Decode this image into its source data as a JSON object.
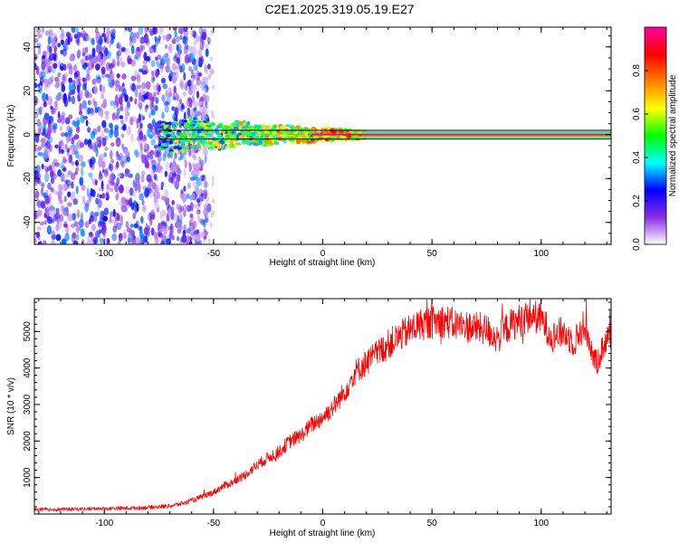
{
  "title": "C2E1.2025.319.05.19.E27",
  "chart_data": [
    {
      "type": "heatmap",
      "name": "spectrogram",
      "xlabel": "Height of straight line (km)",
      "ylabel": "Frequency (Hz)",
      "xlim": [
        -132,
        132
      ],
      "ylim": [
        -50,
        49
      ],
      "xticks": [
        -100,
        -50,
        0,
        50,
        100
      ],
      "xtick_labels": [
        "-100",
        "-50",
        "0",
        "50",
        "100"
      ],
      "yticks": [
        -40,
        -20,
        0,
        20,
        40
      ],
      "ytick_labels": [
        "-40",
        "-20",
        "0",
        "20",
        "40"
      ],
      "reference_lines": [
        2,
        -2
      ],
      "colorbar": {
        "label": "Normalized spectral amplitude",
        "range": [
          0,
          1
        ],
        "ticks": [
          0.0,
          0.2,
          0.4,
          0.6,
          0.8
        ],
        "tick_labels": [
          "0.0",
          "0.2",
          "0.4",
          "0.6",
          "0.8"
        ],
        "colormap": [
          "#ffffff",
          "#8a2be2",
          "#0000ff",
          "#00ffff",
          "#00ff00",
          "#ffff00",
          "#ff8000",
          "#ff0000",
          "#ff00a0"
        ]
      },
      "noise_region": [
        -132,
        -52
      ],
      "signal_band": {
        "start": -75,
        "end": 132,
        "center": 0
      }
    },
    {
      "type": "line",
      "name": "snr",
      "xlabel": "Height of straight line (km)",
      "ylabel": "SNR (10 * v/v)",
      "xlim": [
        -132,
        132
      ],
      "ylim": [
        0,
        5900
      ],
      "xticks": [
        -100,
        -50,
        0,
        50,
        100
      ],
      "xtick_labels": [
        "-100",
        "-50",
        "0",
        "50",
        "100"
      ],
      "yticks": [
        1000,
        2000,
        3000,
        4000,
        5000
      ],
      "ytick_labels": [
        "1000",
        "2000",
        "3000",
        "4000",
        "5000"
      ],
      "color": "#ff0000",
      "series": [
        {
          "name": "SNR",
          "x": [
            -132,
            -120,
            -110,
            -100,
            -90,
            -80,
            -70,
            -62,
            -55,
            -50,
            -45,
            -40,
            -35,
            -30,
            -25,
            -20,
            -15,
            -10,
            -5,
            0,
            5,
            10,
            15,
            20,
            25,
            30,
            35,
            40,
            45,
            50,
            55,
            60,
            65,
            70,
            75,
            80,
            85,
            90,
            95,
            100,
            105,
            110,
            115,
            120,
            125,
            130,
            132
          ],
          "values": [
            120,
            130,
            140,
            150,
            160,
            180,
            220,
            320,
            480,
            600,
            780,
            900,
            1100,
            1350,
            1550,
            1700,
            2000,
            2150,
            2450,
            2650,
            2950,
            3350,
            3900,
            4150,
            4400,
            4650,
            4850,
            5050,
            5200,
            5250,
            5300,
            5200,
            5150,
            5100,
            5050,
            4800,
            5150,
            5300,
            5450,
            5350,
            4850,
            5000,
            4700,
            5200,
            4100,
            4800,
            4900
          ]
        }
      ]
    }
  ]
}
